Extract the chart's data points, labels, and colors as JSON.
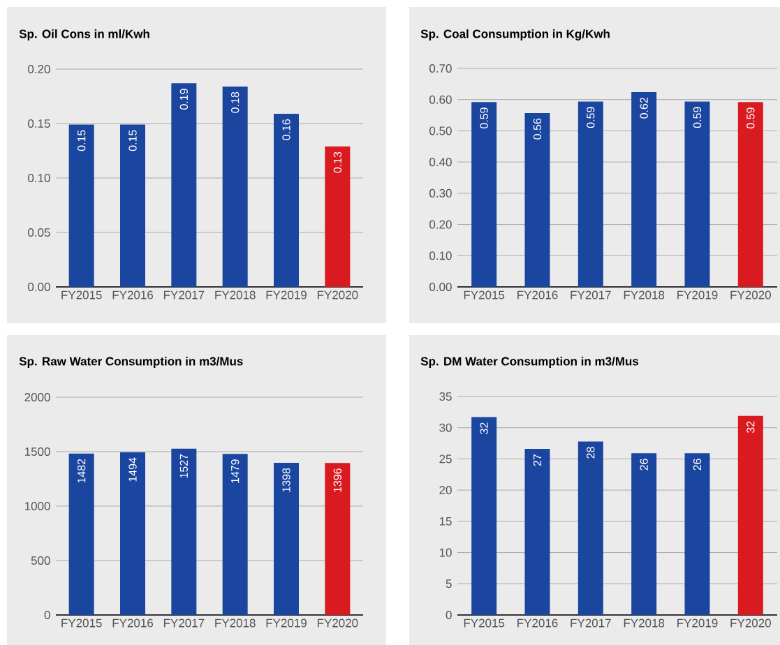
{
  "chart_data": [
    {
      "type": "bar",
      "title": "Sp. Oil Cons in ml/Kwh",
      "categories": [
        "FY2015",
        "FY2016",
        "FY2017",
        "FY2018",
        "FY2019",
        "FY2020"
      ],
      "values": [
        0.149,
        0.149,
        0.187,
        0.184,
        0.159,
        0.129
      ],
      "value_labels": [
        "0.15",
        "0.15",
        "0.19",
        "0.18",
        "0.16",
        "0.13"
      ],
      "colors": [
        "#1a46a0",
        "#1a46a0",
        "#1a46a0",
        "#1a46a0",
        "#1a46a0",
        "#d91a21"
      ],
      "ylim": [
        0,
        0.2
      ],
      "yticks": [
        {
          "value": 0,
          "label": "0.00"
        },
        {
          "value": 0.05,
          "label": "0.05"
        },
        {
          "value": 0.1,
          "label": "0.10"
        },
        {
          "value": 0.15,
          "label": "0.15"
        },
        {
          "value": 0.2,
          "label": "0.20"
        }
      ],
      "grid": "y"
    },
    {
      "type": "bar",
      "title": "Sp. Coal Consumption in Kg/Kwh",
      "categories": [
        "FY2015",
        "FY2016",
        "FY2017",
        "FY2018",
        "FY2019",
        "FY2020"
      ],
      "values": [
        0.592,
        0.557,
        0.594,
        0.624,
        0.594,
        0.592
      ],
      "value_labels": [
        "0.59",
        "0.56",
        "0.59",
        "0.62",
        "0.59",
        "0.59"
      ],
      "colors": [
        "#1a46a0",
        "#1a46a0",
        "#1a46a0",
        "#1a46a0",
        "#1a46a0",
        "#d91a21"
      ],
      "ylim": [
        0,
        0.7
      ],
      "yticks": [
        {
          "value": 0,
          "label": "0.00"
        },
        {
          "value": 0.1,
          "label": "0.10"
        },
        {
          "value": 0.2,
          "label": "0.20"
        },
        {
          "value": 0.3,
          "label": "0.30"
        },
        {
          "value": 0.4,
          "label": "0.40"
        },
        {
          "value": 0.5,
          "label": "0.50"
        },
        {
          "value": 0.6,
          "label": "0.60"
        },
        {
          "value": 0.7,
          "label": "0.70"
        }
      ],
      "grid": "y"
    },
    {
      "type": "bar",
      "title": "Sp. Raw Water Consumption in m3/Mus",
      "categories": [
        "FY2015",
        "FY2016",
        "FY2017",
        "FY2018",
        "FY2019",
        "FY2020"
      ],
      "values": [
        1482,
        1494,
        1527,
        1479,
        1398,
        1396
      ],
      "value_labels": [
        "1482",
        "1494",
        "1527",
        "1479",
        "1398",
        "1396"
      ],
      "colors": [
        "#1a46a0",
        "#1a46a0",
        "#1a46a0",
        "#1a46a0",
        "#1a46a0",
        "#d91a21"
      ],
      "ylim": [
        0,
        2000
      ],
      "yticks": [
        0,
        500,
        1000,
        1500,
        2000
      ],
      "grid": "y"
    },
    {
      "type": "bar",
      "title": "Sp. DM Water Consumption in m3/Mus",
      "categories": [
        "FY2015",
        "FY2016",
        "FY2017",
        "FY2018",
        "FY2019",
        "FY2020"
      ],
      "values": [
        31.7,
        26.6,
        27.8,
        25.9,
        25.9,
        31.9
      ],
      "value_labels": [
        "32",
        "27",
        "28",
        "26",
        "26",
        "32"
      ],
      "colors": [
        "#1a46a0",
        "#1a46a0",
        "#1a46a0",
        "#1a46a0",
        "#1a46a0",
        "#d91a21"
      ],
      "ylim": [
        0,
        35
      ],
      "yticks": [
        0,
        5,
        10,
        15,
        20,
        25,
        30,
        35
      ],
      "grid": "y"
    }
  ]
}
